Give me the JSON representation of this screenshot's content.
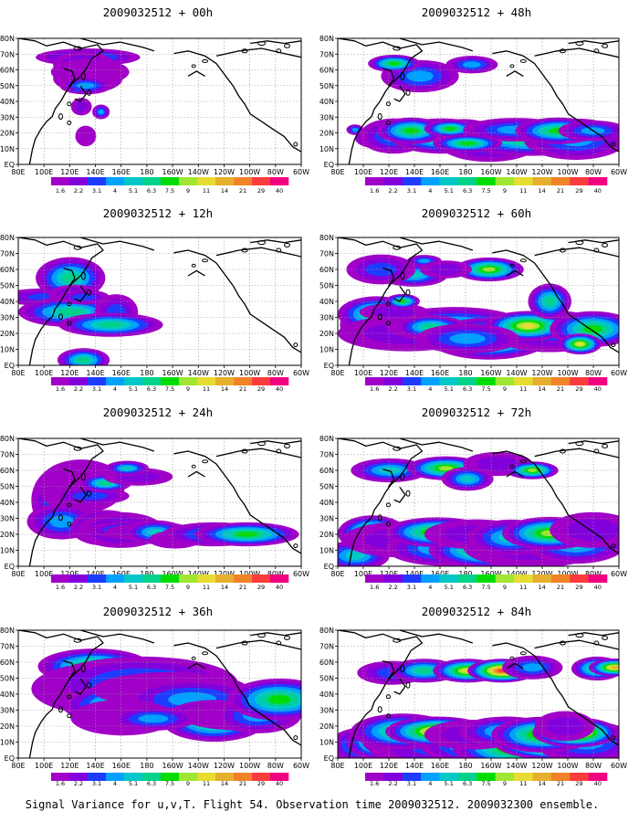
{
  "figure": {
    "caption": "Signal Variance for u,v,T. Flight 54. Observation time 2009032512. 2009032300 ensemble."
  },
  "x_ticks": [
    "80E",
    "100E",
    "120E",
    "140E",
    "160E",
    "180",
    "160W",
    "140W",
    "120W",
    "100W",
    "80W",
    "60W"
  ],
  "y_ticks": [
    "EQ",
    "10N",
    "20N",
    "30N",
    "40N",
    "50N",
    "60N",
    "70N",
    "80N"
  ],
  "colorbar": {
    "levels": [
      "1.6",
      "2.2",
      "3.1",
      "4",
      "5.1",
      "6.3",
      "7.5",
      "9",
      "11",
      "14",
      "21",
      "29",
      "40"
    ],
    "colors": [
      "#a000c8",
      "#8200dc",
      "#1e3cff",
      "#00a0ff",
      "#00c8c8",
      "#00d28c",
      "#00dc00",
      "#a0e632",
      "#e6dc32",
      "#e6af2d",
      "#f08228",
      "#fa3c3c",
      "#f00082"
    ]
  },
  "panels": [
    {
      "title": "2009032512 + 00h",
      "lead_hours": 0
    },
    {
      "title": "2009032512 + 12h",
      "lead_hours": 12
    },
    {
      "title": "2009032512 + 24h",
      "lead_hours": 24
    },
    {
      "title": "2009032512 + 36h",
      "lead_hours": 36
    },
    {
      "title": "2009032512 + 48h",
      "lead_hours": 48
    },
    {
      "title": "2009032512 + 60h",
      "lead_hours": 60
    },
    {
      "title": "2009032512 + 72h",
      "lead_hours": 72
    },
    {
      "title": "2009032512 + 84h",
      "lead_hours": 84
    }
  ],
  "blobs": {
    "0": [
      [
        300,
        200,
        42,
        20,
        0
      ],
      [
        320,
        180,
        60,
        30,
        1
      ],
      [
        300,
        250,
        35,
        45,
        2
      ],
      [
        330,
        320,
        45,
        45,
        3
      ],
      [
        320,
        380,
        40,
        50,
        4
      ],
      [
        310,
        450,
        30,
        30,
        5
      ],
      [
        270,
        500,
        12,
        5,
        6
      ],
      [
        290,
        650,
        12,
        30,
        7
      ],
      [
        310,
        930,
        12,
        35,
        9
      ],
      [
        380,
        700,
        10,
        25,
        12
      ]
    ],
    "12": [
      [
        150,
        560,
        60,
        30,
        1
      ],
      [
        240,
        380,
        40,
        70,
        2
      ],
      [
        260,
        540,
        30,
        35,
        3
      ],
      [
        240,
        700,
        60,
        50,
        4
      ],
      [
        300,
        560,
        30,
        25,
        5
      ],
      [
        300,
        1150,
        30,
        40,
        6
      ],
      [
        450,
        700,
        25,
        60,
        7
      ],
      [
        425,
        820,
        60,
        40,
        8
      ]
    ],
    "24": [
      [
        220,
        580,
        40,
        120,
        0
      ],
      [
        290,
        450,
        50,
        90,
        1
      ],
      [
        200,
        780,
        40,
        60,
        2
      ],
      [
        400,
        840,
        40,
        60,
        3
      ],
      [
        470,
        860,
        50,
        60,
        4
      ],
      [
        560,
        860,
        60,
        30,
        5
      ],
      [
        600,
        880,
        50,
        30,
        6
      ],
      [
        630,
        880,
        35,
        40,
        7
      ],
      [
        720,
        950,
        30,
        30,
        8
      ],
      [
        900,
        900,
        60,
        40,
        9
      ],
      [
        1050,
        900,
        60,
        40,
        10
      ],
      [
        330,
        540,
        45,
        30,
        11
      ],
      [
        400,
        420,
        30,
        30,
        12
      ],
      [
        550,
        360,
        40,
        30,
        13
      ],
      [
        500,
        280,
        25,
        25,
        14
      ]
    ],
    "36": [
      [
        350,
        340,
        65,
        60,
        0
      ],
      [
        420,
        550,
        90,
        90,
        1
      ],
      [
        570,
        500,
        110,
        90,
        2
      ],
      [
        520,
        700,
        80,
        70,
        3
      ],
      [
        700,
        560,
        90,
        60,
        4
      ],
      [
        800,
        650,
        80,
        70,
        5
      ],
      [
        900,
        850,
        60,
        70,
        6
      ],
      [
        1020,
        800,
        70,
        50,
        7
      ],
      [
        1100,
        800,
        50,
        60,
        8
      ],
      [
        1200,
        650,
        60,
        70,
        9
      ],
      [
        480,
        820,
        60,
        60,
        10
      ],
      [
        620,
        830,
        50,
        40,
        11
      ]
    ],
    "48": [
      [
        80,
        870,
        10,
        18,
        0
      ],
      [
        180,
        950,
        25,
        35,
        1
      ],
      [
        260,
        930,
        40,
        60,
        2
      ],
      [
        480,
        930,
        60,
        60,
        3
      ],
      [
        700,
        980,
        60,
        70,
        4
      ],
      [
        900,
        950,
        90,
        60,
        5
      ],
      [
        1100,
        960,
        60,
        70,
        6
      ],
      [
        340,
        880,
        40,
        45,
        7
      ],
      [
        580,
        880,
        35,
        40,
        8
      ],
      [
        520,
        860,
        30,
        30,
        9
      ],
      [
        820,
        870,
        60,
        40,
        10
      ],
      [
        1020,
        880,
        50,
        45,
        11
      ],
      [
        1180,
        880,
        40,
        35,
        12
      ],
      [
        600,
        1000,
        40,
        30,
        13
      ],
      [
        380,
        360,
        45,
        55,
        14
      ],
      [
        260,
        240,
        30,
        30,
        15
      ],
      [
        620,
        250,
        30,
        30,
        16
      ]
    ],
    "60": [
      [
        150,
        820,
        35,
        60,
        0
      ],
      [
        180,
        720,
        45,
        60,
        1
      ],
      [
        320,
        900,
        80,
        60,
        2
      ],
      [
        540,
        820,
        80,
        60,
        3
      ],
      [
        700,
        950,
        70,
        70,
        4
      ],
      [
        980,
        880,
        70,
        70,
        5
      ],
      [
        430,
        840,
        40,
        40,
        6
      ],
      [
        880,
        830,
        50,
        50,
        7
      ],
      [
        600,
        950,
        60,
        50,
        8
      ],
      [
        1180,
        860,
        50,
        60,
        9
      ],
      [
        260,
        700,
        40,
        30,
        10
      ],
      [
        350,
        350,
        40,
        40,
        11
      ],
      [
        700,
        300,
        40,
        40,
        12
      ],
      [
        200,
        300,
        40,
        50,
        13
      ],
      [
        980,
        600,
        25,
        60,
        14
      ],
      [
        1120,
        1000,
        25,
        35,
        15
      ],
      [
        400,
        220,
        20,
        20,
        16
      ],
      [
        300,
        600,
        20,
        25,
        17
      ],
      [
        500,
        300,
        30,
        30,
        18
      ]
    ],
    "72": [
      [
        80,
        1100,
        40,
        50,
        0
      ],
      [
        160,
        890,
        40,
        60,
        1
      ],
      [
        300,
        950,
        70,
        60,
        2
      ],
      [
        500,
        1030,
        70,
        60,
        3
      ],
      [
        700,
        1050,
        70,
        60,
        4
      ],
      [
        900,
        1020,
        80,
        70,
        5
      ],
      [
        1100,
        980,
        60,
        70,
        6
      ],
      [
        460,
        880,
        60,
        50,
        7
      ],
      [
        640,
        900,
        60,
        50,
        8
      ],
      [
        800,
        930,
        50,
        60,
        9
      ],
      [
        980,
        890,
        55,
        55,
        10
      ],
      [
        1180,
        860,
        50,
        60,
        11
      ],
      [
        240,
        300,
        45,
        40,
        12
      ],
      [
        500,
        280,
        45,
        40,
        13
      ],
      [
        740,
        240,
        40,
        40,
        14
      ],
      [
        600,
        380,
        30,
        40,
        15
      ],
      [
        900,
        300,
        30,
        30,
        16
      ]
    ],
    "84": [
      [
        120,
        1080,
        40,
        60,
        0
      ],
      [
        200,
        1050,
        40,
        60,
        1
      ],
      [
        350,
        1030,
        60,
        70,
        2
      ],
      [
        500,
        1100,
        90,
        70,
        3
      ],
      [
        660,
        1070,
        70,
        70,
        4
      ],
      [
        850,
        1100,
        80,
        70,
        5
      ],
      [
        1000,
        1050,
        70,
        60,
        6
      ],
      [
        1150,
        1050,
        60,
        70,
        7
      ],
      [
        300,
        950,
        60,
        60,
        8
      ],
      [
        460,
        950,
        60,
        50,
        9
      ],
      [
        620,
        980,
        55,
        50,
        10
      ],
      [
        780,
        950,
        55,
        50,
        11
      ],
      [
        950,
        980,
        60,
        60,
        12
      ],
      [
        1100,
        960,
        50,
        50,
        13
      ],
      [
        250,
        400,
        40,
        40,
        14
      ],
      [
        400,
        380,
        40,
        40,
        15
      ],
      [
        600,
        380,
        40,
        40,
        16
      ],
      [
        760,
        380,
        40,
        40,
        17
      ],
      [
        900,
        350,
        35,
        40,
        18
      ],
      [
        1200,
        360,
        30,
        40,
        19
      ],
      [
        1280,
        350,
        30,
        30,
        20
      ],
      [
        1050,
        900,
        35,
        50,
        21
      ]
    ]
  }
}
